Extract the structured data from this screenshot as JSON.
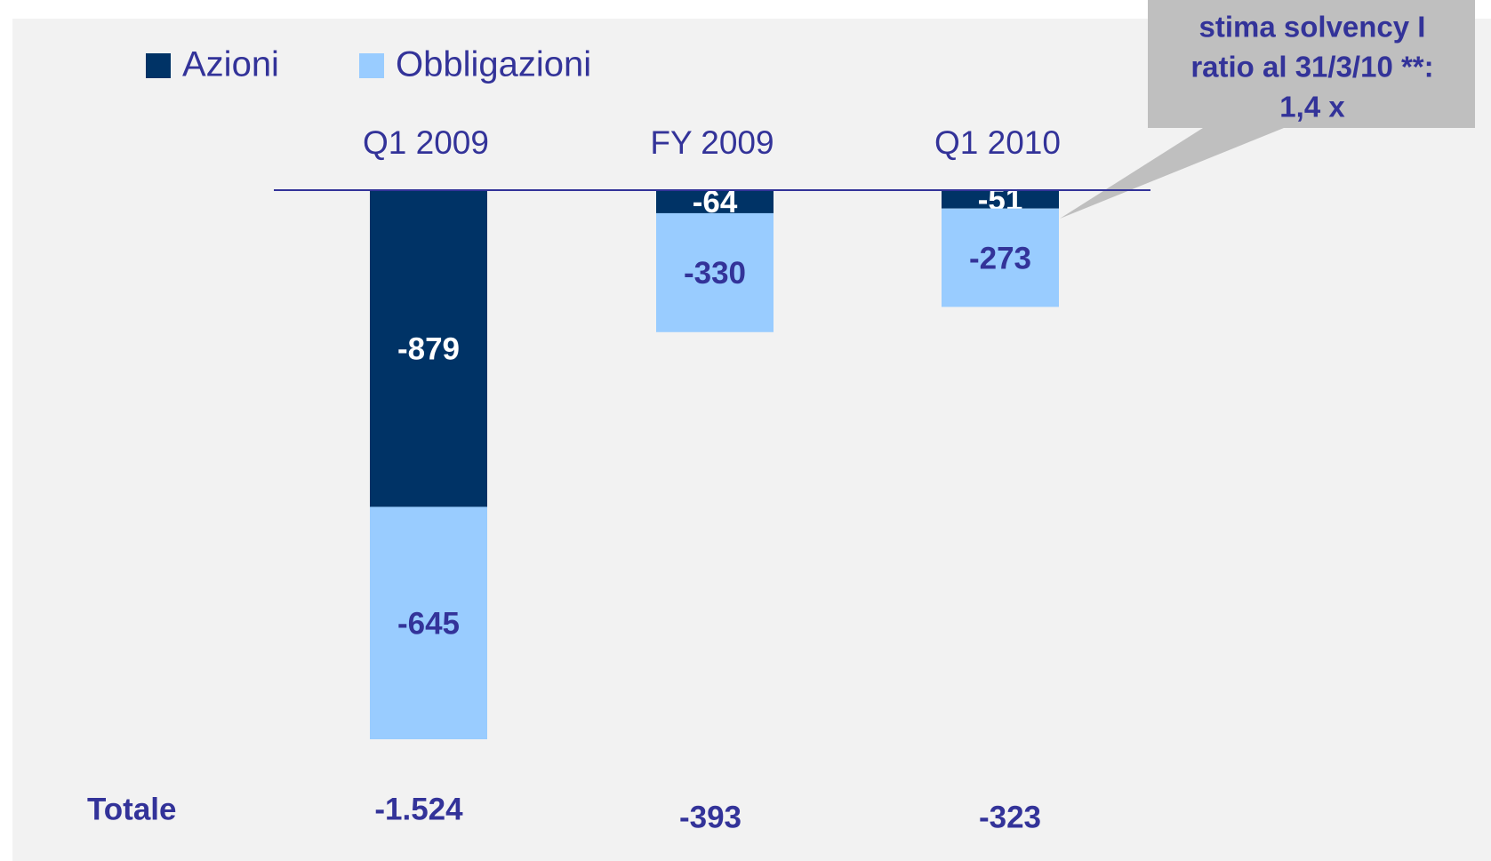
{
  "chart_data": {
    "type": "stacked-bar",
    "categories": [
      "Q1 2009",
      "FY 2009",
      "Q1 2010"
    ],
    "series": [
      {
        "name": "Azioni",
        "color": "#003366",
        "label_color": "#ffffff",
        "values": [
          -879,
          -64,
          -51
        ]
      },
      {
        "name": "Obbligazioni",
        "color": "#99ccff",
        "label_color": "#333399",
        "values": [
          -645,
          -330,
          -273
        ]
      }
    ],
    "totals": {
      "label": "Totale",
      "values": [
        -1524,
        -393,
        -323
      ],
      "value_labels": [
        "-1.524",
        "-393",
        "-323"
      ]
    },
    "annotation": [
      "stima solvency I",
      "ratio al 31/3/10 **:",
      "1,4 x"
    ]
  }
}
